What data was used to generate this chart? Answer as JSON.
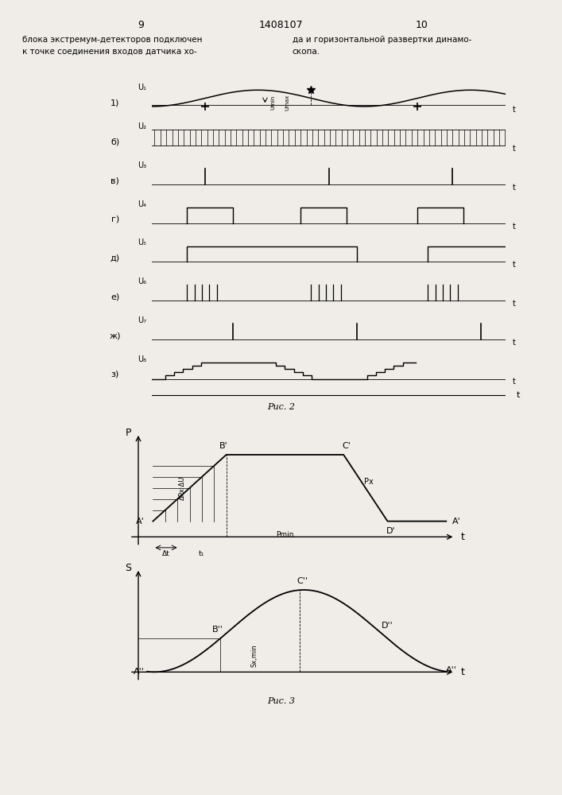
{
  "page_numbers": [
    "9",
    "1408107",
    "10"
  ],
  "header_left": "блока экстремум-детекторов подключен\nк точке соединения входов датчика хо-",
  "header_right": "да и горизонтальной развертки динамо-\nскопа.",
  "fig2_caption": "Рис. 2",
  "fig3_caption": "Рис. 3",
  "row_labels": [
    "1)",
    "б)",
    "в)",
    "г)",
    "д)",
    "е)",
    "ж)",
    "з)"
  ],
  "u_labels": [
    "U₁",
    "U₂",
    "U₃",
    "U₄",
    "U₅",
    "U₆",
    "U₇",
    "U₈"
  ],
  "background_color": "#f0ede8",
  "line_color": "#000000"
}
